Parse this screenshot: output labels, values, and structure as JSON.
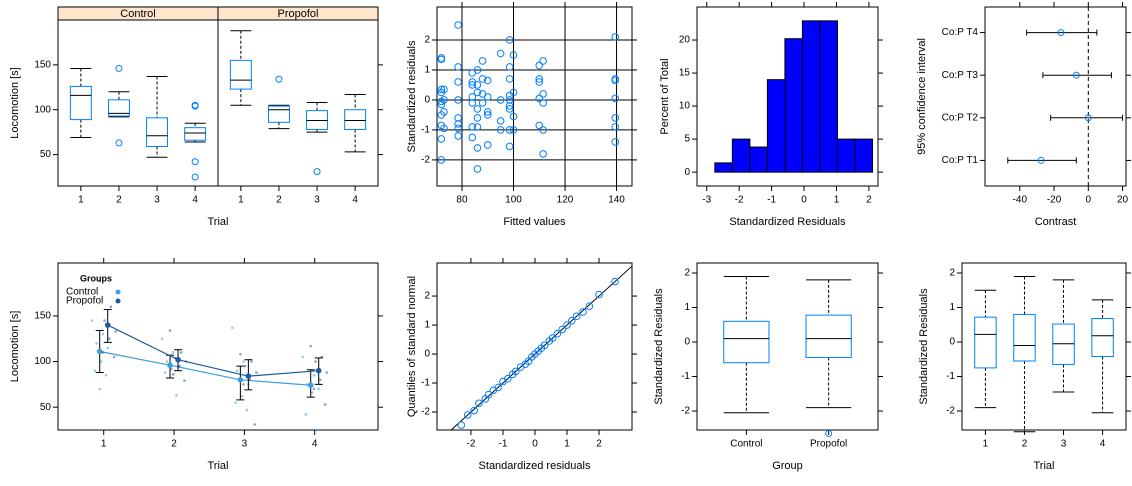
{
  "chart_data": [
    {
      "type": "box",
      "ylabel": "Locomotion [s]",
      "xlabel": "Trial",
      "color": "#0080ff",
      "categories": [
        "1",
        "2",
        "3",
        "4"
      ],
      "ylim": [
        15,
        200
      ],
      "yticks": [
        50,
        100,
        150
      ],
      "series": [
        {
          "name": "Control",
          "boxes": [
            {
              "whislo": 69,
              "q1": 89,
              "med": 116,
              "q3": 126,
              "whishi": 146
            },
            {
              "whislo": 92,
              "q1": 93,
              "med": 96,
              "q3": 111,
              "whishi": 120,
              "fliers": [
                146,
                63
              ]
            },
            {
              "whislo": 47,
              "q1": 59,
              "med": 71,
              "q3": 91,
              "whishi": 137
            },
            {
              "whislo": 64,
              "q1": 66,
              "med": 74,
              "q3": 80,
              "whishi": 85,
              "fliers": [
                105,
                104,
                42,
                25
              ]
            }
          ]
        },
        {
          "name": "Propofol",
          "boxes": [
            {
              "whislo": 105,
              "q1": 123,
              "med": 133,
              "q3": 155,
              "whishi": 188
            },
            {
              "whislo": 79,
              "q1": 86,
              "med": 100,
              "q3": 104,
              "whishi": 105,
              "fliers": [
                134
              ]
            },
            {
              "whislo": 75,
              "q1": 78,
              "med": 88,
              "q3": 99,
              "whishi": 108,
              "fliers": [
                31
              ]
            },
            {
              "whislo": 53,
              "q1": 78,
              "med": 88,
              "q3": 100,
              "whishi": 117
            }
          ]
        }
      ]
    },
    {
      "type": "scatter",
      "xlabel": "Fitted values",
      "ylabel": "Standardized residuals",
      "color": "#0080ff",
      "grid": true,
      "hline": 0,
      "xlim": [
        70.3,
        146
      ],
      "xticks": [
        80,
        100,
        120,
        140
      ],
      "ylim": [
        -2.87,
        3.1
      ],
      "yticks": [
        -2,
        -1,
        0,
        1,
        2
      ],
      "x": [
        72,
        72,
        72,
        72,
        72,
        72,
        72,
        72,
        72,
        72,
        73,
        73,
        73,
        73,
        78.5,
        78.5,
        78.5,
        78.5,
        78.5,
        78.5,
        78.5,
        78.5,
        84,
        84,
        84,
        84,
        84,
        84,
        84,
        86,
        86,
        86,
        86,
        86,
        86,
        86,
        86,
        88,
        88,
        88,
        88,
        90,
        90,
        90,
        90,
        90,
        95,
        95,
        95,
        95,
        98.5,
        98.5,
        98.5,
        98.5,
        98.5,
        98.5,
        98.5,
        98.5,
        98.5,
        100,
        100,
        100,
        100,
        110,
        110,
        110,
        110,
        110,
        111.5,
        111.5,
        111.5,
        111.5,
        111.5,
        139.5,
        139.5,
        139.5,
        139.5,
        139.5,
        139.5,
        139.5
      ],
      "y": [
        1.4,
        1.35,
        0.35,
        0.25,
        -0.05,
        -0.15,
        -0.5,
        -0.85,
        -1.3,
        -2.0,
        0.35,
        0.0,
        -0.4,
        -0.95,
        2.5,
        1.1,
        0.6,
        0.0,
        -0.6,
        -0.8,
        -0.95,
        -1.2,
        0.9,
        0.6,
        0.5,
        0.1,
        -0.1,
        -0.9,
        -1.25,
        1.0,
        0.5,
        0.25,
        -0.3,
        -0.6,
        -0.9,
        -1.6,
        -2.3,
        1.3,
        0.7,
        0.2,
        -0.1,
        0.65,
        0.1,
        -0.4,
        -0.5,
        -1.5,
        1.55,
        0.0,
        -0.7,
        -1.0,
        2.0,
        1.1,
        0.7,
        0.15,
        0.0,
        -0.2,
        -0.3,
        -1.0,
        -1.55,
        1.5,
        0.25,
        -0.55,
        -1.0,
        1.15,
        0.7,
        0.6,
        0.05,
        -0.85,
        1.3,
        0.2,
        -0.1,
        -1.0,
        -1.8,
        2.1,
        0.7,
        0.65,
        0.05,
        -0.6,
        -0.9,
        -1.4
      ]
    },
    {
      "type": "histogram",
      "xlabel": "Standardized Residuals",
      "ylabel": "Percent of Total",
      "color": "#0000ff",
      "xlim": [
        -3.3,
        2.28
      ],
      "xticks": [
        -3,
        -2,
        -1,
        0,
        1,
        2
      ],
      "ylim": [
        -2.1,
        25
      ],
      "yticks": [
        0,
        5,
        10,
        15,
        20
      ],
      "bins": [
        -2.75,
        -2.21,
        -1.67,
        -1.13,
        -0.59,
        -0.05,
        0.49,
        1.03,
        1.57,
        2.11
      ],
      "values": [
        1.4,
        5,
        3.8,
        14,
        20.2,
        22.9,
        22.9,
        5,
        5
      ]
    },
    {
      "type": "errorbar",
      "xlabel": "Contrast",
      "ylabel": "95% confidence interval",
      "refline": 0,
      "xlim": [
        -60.3,
        22
      ],
      "xticks": [
        -40,
        -20,
        0,
        20
      ],
      "categories": [
        "Co:P T1",
        "Co:P T2",
        "Co:P T3",
        "Co:P T4"
      ],
      "values": [
        -27.6,
        0,
        -7,
        -16
      ],
      "lower": [
        -47,
        -22,
        -26.5,
        -36
      ],
      "upper": [
        -7,
        20,
        13.5,
        5
      ]
    },
    {
      "type": "line",
      "xlabel": "Trial",
      "ylabel": "Locomotion [s]",
      "legend_title": "Groups",
      "legend": "top-left",
      "xlim": [
        0.35,
        4.9
      ],
      "xticks": [
        1,
        2,
        3,
        4
      ],
      "ylim": [
        25,
        208
      ],
      "yticks": [
        50,
        100,
        150
      ],
      "series": [
        {
          "name": "Control",
          "color": "#3c9fe0",
          "values": [
            111,
            96,
            80,
            74
          ],
          "lower": [
            88,
            82,
            58,
            61
          ],
          "upper": [
            134,
            107,
            95,
            91
          ],
          "raw": [
            [
              145,
              130,
              120,
              115,
              100,
              90,
              85,
              70
            ],
            [
              125,
              110,
              100,
              95,
              92,
              88,
              63
            ],
            [
              137,
              100,
              90,
              75,
              62,
              55,
              47
            ],
            [
              105,
              85,
              75,
              70,
              66,
              42,
              25
            ]
          ]
        },
        {
          "name": "Propofol",
          "color": "#1d5aa0",
          "values": [
            140,
            102,
            84,
            90
          ],
          "lower": [
            121,
            90,
            69,
            75
          ],
          "upper": [
            157,
            113,
            102,
            104
          ],
          "raw": [
            [
              188,
              160,
              145,
              133,
              125,
              110,
              105
            ],
            [
              134,
              110,
              104,
              100,
              95,
              86,
              79
            ],
            [
              108,
              100,
              95,
              88,
              80,
              75,
              31
            ],
            [
              117,
              105,
              100,
              88,
              80,
              70,
              53
            ]
          ]
        }
      ]
    },
    {
      "type": "qq",
      "xlabel": "Standardized residuals",
      "ylabel": "Quantiles of standard normal",
      "color": "#0080ff",
      "xlim": [
        -3.06,
        3.03
      ],
      "xticks": [
        -2,
        -1,
        0,
        1,
        2
      ],
      "ylim": [
        -2.62,
        3.14
      ],
      "yticks": [
        -2,
        -1,
        0,
        1,
        2
      ],
      "x": [
        -2.3,
        -2.1,
        -1.9,
        -1.75,
        -1.55,
        -1.45,
        -1.3,
        -1.15,
        -1.0,
        -0.85,
        -0.7,
        -0.6,
        -0.45,
        -0.3,
        -0.2,
        -0.1,
        0.0,
        0.1,
        0.2,
        0.3,
        0.45,
        0.55,
        0.7,
        0.85,
        1.0,
        1.15,
        1.3,
        1.5,
        1.7,
        2.0,
        2.5
      ],
      "y": [
        -2.45,
        -2.1,
        -1.95,
        -1.7,
        -1.55,
        -1.4,
        -1.25,
        -1.15,
        -0.95,
        -0.85,
        -0.7,
        -0.6,
        -0.45,
        -0.35,
        -0.25,
        -0.1,
        0.0,
        0.1,
        0.2,
        0.3,
        0.45,
        0.55,
        0.7,
        0.85,
        1.0,
        1.15,
        1.3,
        1.45,
        1.65,
        2.05,
        2.5
      ]
    },
    {
      "type": "box",
      "xlabel": "Group",
      "ylabel": "Standardized Residuals",
      "color": "#0080ff",
      "categories": [
        "Control",
        "Propofol"
      ],
      "ylim": [
        -2.55,
        2.29
      ],
      "yticks": [
        -2,
        -1,
        0,
        1,
        2
      ],
      "boxes": [
        {
          "whislo": -2.05,
          "q1": -0.6,
          "med": 0.1,
          "q3": 0.6,
          "whishi": 1.9
        },
        {
          "whislo": -1.9,
          "q1": -0.45,
          "med": 0.1,
          "q3": 0.78,
          "whishi": 1.8,
          "fliers": [
            -2.65
          ]
        }
      ]
    },
    {
      "type": "box",
      "xlabel": "Trial",
      "ylabel": "Standardized Residuals",
      "color": "#0080ff",
      "categories": [
        "1",
        "2",
        "3",
        "4"
      ],
      "ylim": [
        -2.55,
        2.29
      ],
      "yticks": [
        -2,
        -1,
        0,
        1,
        2
      ],
      "boxes": [
        {
          "whislo": -1.9,
          "q1": -0.75,
          "med": 0.22,
          "q3": 0.72,
          "whishi": 1.5
        },
        {
          "whislo": -2.6,
          "q1": -0.55,
          "med": -0.1,
          "q3": 0.8,
          "whishi": 1.9
        },
        {
          "whislo": -1.45,
          "q1": -0.65,
          "med": -0.05,
          "q3": 0.52,
          "whishi": 1.8
        },
        {
          "whislo": -2.05,
          "q1": -0.42,
          "med": 0.18,
          "q3": 0.68,
          "whishi": 1.22
        }
      ]
    }
  ]
}
